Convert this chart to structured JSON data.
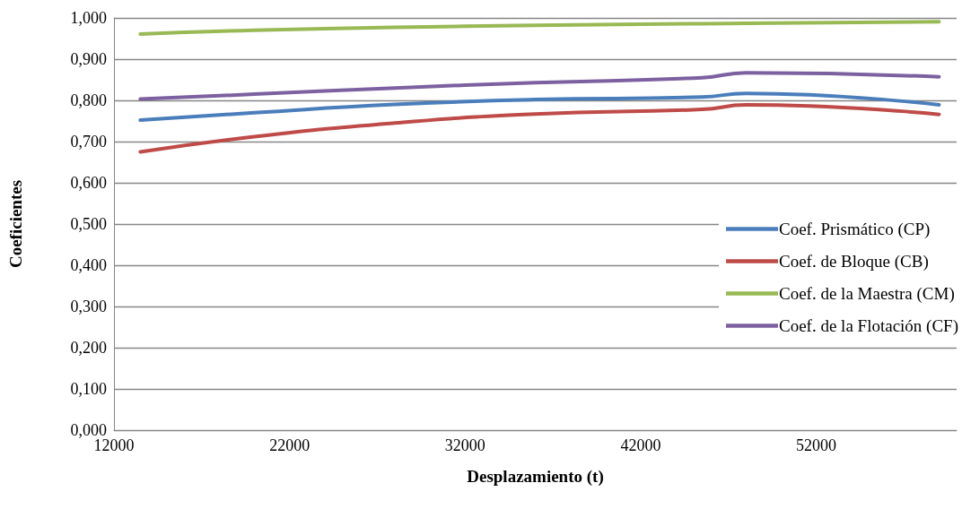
{
  "chart_data": {
    "type": "line",
    "xlabel": "Desplazamiento (t)",
    "ylabel": "Coeficientes",
    "x": [
      13500,
      20000,
      28000,
      36000,
      45500,
      48000,
      59000
    ],
    "series": [
      {
        "name": "Coef. Prismático (CP)",
        "color": "#4a7ebb",
        "values": [
          0.752,
          0.77,
          0.79,
          0.802,
          0.808,
          0.817,
          0.789
        ]
      },
      {
        "name": "Coef. de Bloque (CB)",
        "color": "#be4b48",
        "values": [
          0.675,
          0.712,
          0.745,
          0.767,
          0.778,
          0.789,
          0.766
        ]
      },
      {
        "name": "Coef. de la Maestra (CM)",
        "color": "#98b954",
        "values": [
          0.961,
          0.97,
          0.977,
          0.982,
          0.986,
          0.987,
          0.991
        ]
      },
      {
        "name": "Coef. de la Flotación (CF)",
        "color": "#7d60a0",
        "values": [
          0.803,
          0.815,
          0.83,
          0.843,
          0.855,
          0.867,
          0.857
        ]
      }
    ],
    "xlim": [
      12000,
      60000
    ],
    "xticks": [
      12000,
      22000,
      32000,
      42000,
      52000
    ],
    "ylim": [
      0,
      1
    ],
    "yticks": [
      {
        "value": 0,
        "label": "0,000"
      },
      {
        "value": 0.1,
        "label": "0,100"
      },
      {
        "value": 0.2,
        "label": "0,200"
      },
      {
        "value": 0.3,
        "label": "0,300"
      },
      {
        "value": 0.4,
        "label": "0,400"
      },
      {
        "value": 0.5,
        "label": "0,500"
      },
      {
        "value": 0.6,
        "label": "0,600"
      },
      {
        "value": 0.7,
        "label": "0,700"
      },
      {
        "value": 0.8,
        "label": "0,800"
      },
      {
        "value": 0.9,
        "label": "0,900"
      },
      {
        "value": 1,
        "label": "1,000"
      }
    ],
    "grid": "y",
    "legend": "right",
    "marker": "none",
    "line_style": "solid"
  }
}
